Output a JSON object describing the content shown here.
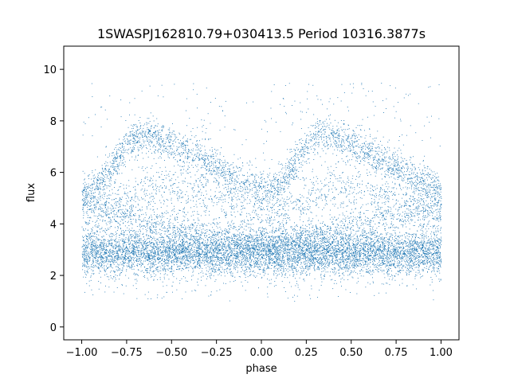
{
  "chart_data": {
    "type": "scatter",
    "title": "1SWASPJ162810.79+030413.5 Period 10316.3877s",
    "xlabel": "phase",
    "ylabel": "flux",
    "xlim": [
      -1.1,
      1.1
    ],
    "ylim": [
      -0.5,
      10.9
    ],
    "x_ticks": [
      -1.0,
      -0.75,
      -0.5,
      -0.25,
      0.0,
      0.25,
      0.5,
      0.75,
      1.0
    ],
    "x_tick_labels": [
      "−1.00",
      "−0.75",
      "−0.50",
      "−0.25",
      "0.00",
      "0.25",
      "0.50",
      "0.75",
      "1.00"
    ],
    "y_ticks": [
      0,
      2,
      4,
      6,
      8,
      10
    ],
    "y_tick_labels": [
      "0",
      "2",
      "4",
      "6",
      "8",
      "10"
    ],
    "grid": false,
    "marker_color": "#1f77b4",
    "point_count_approx": 60000,
    "x_range_of_points": [
      -1.0,
      1.0
    ],
    "series": [
      {
        "role": "baseline band (dense)",
        "phase": [
          -1.0,
          -0.5,
          0.0,
          0.5,
          1.0
        ],
        "flux_center": [
          2.9,
          2.9,
          2.9,
          2.9,
          2.9
        ],
        "flux_spread": 0.45
      },
      {
        "role": "upper arc (rise then decline)",
        "phase": [
          -1.0,
          -0.9,
          -0.8,
          -0.75,
          -0.7,
          -0.65,
          -0.6,
          -0.5,
          -0.4,
          -0.3,
          -0.2,
          -0.1,
          0.0,
          0.1,
          0.2,
          0.25,
          0.3,
          0.35,
          0.4,
          0.5,
          0.6,
          0.7,
          0.8,
          0.9,
          1.0
        ],
        "flux": [
          5.2,
          5.5,
          6.5,
          7.1,
          7.4,
          7.5,
          7.4,
          7.1,
          6.8,
          6.4,
          6.0,
          5.6,
          5.3,
          5.5,
          6.5,
          7.1,
          7.4,
          7.5,
          7.4,
          7.1,
          6.8,
          6.4,
          6.0,
          5.6,
          5.3
        ]
      },
      {
        "role": "secondary arc",
        "phase": [
          -1.0,
          -0.8,
          -0.6,
          -0.4,
          -0.2,
          0.0,
          0.2,
          0.4,
          0.6,
          0.8,
          1.0
        ],
        "flux": [
          4.2,
          4.8,
          5.4,
          5.2,
          4.8,
          4.2,
          4.8,
          5.4,
          5.2,
          4.8,
          4.2
        ]
      },
      {
        "role": "low diagonal band",
        "phase": [
          -1.0,
          -0.5,
          0.0,
          0.5,
          1.0
        ],
        "flux": [
          4.8,
          3.9,
          3.2,
          3.9,
          4.8
        ]
      }
    ]
  }
}
